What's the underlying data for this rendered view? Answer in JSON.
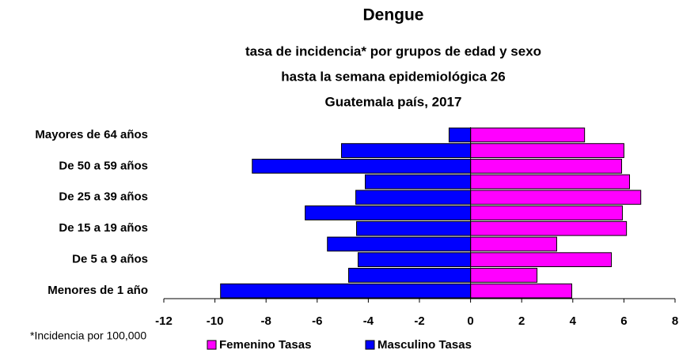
{
  "chart_data": {
    "type": "bar",
    "orientation": "horizontal",
    "stacked": "diverging",
    "title": "Dengue",
    "subtitle": [
      "tasa de incidencia* por grupos de edad y sexo",
      "hasta la semana epidemiológica 26",
      "Guatemala país, 2017"
    ],
    "note": "*Incidencia por 100,000",
    "categories": [
      "Mayores de 64 años",
      null,
      "De 50 a 59 años",
      null,
      "De 25 a 39 años",
      null,
      "De 15 a 19 años",
      null,
      "De 5 a 9 años",
      null,
      "Menores de 1 año"
    ],
    "series": [
      {
        "name": "Femenino Tasas",
        "color": "#ff00ff",
        "values": [
          4.46,
          6.0,
          5.91,
          6.22,
          6.66,
          5.94,
          6.1,
          3.37,
          5.51,
          2.6,
          3.96
        ]
      },
      {
        "name": "Masculino Tasas",
        "color": "#0000ff",
        "values": [
          -0.84,
          -5.05,
          -8.54,
          -4.12,
          -4.49,
          -6.47,
          -4.46,
          -5.6,
          -4.4,
          -4.77,
          -9.78
        ]
      }
    ],
    "xlim": [
      -12,
      8
    ],
    "xticks": [
      -12,
      -10,
      -8,
      -6,
      -4,
      -2,
      0,
      2,
      4,
      6,
      8
    ],
    "grid": false
  }
}
